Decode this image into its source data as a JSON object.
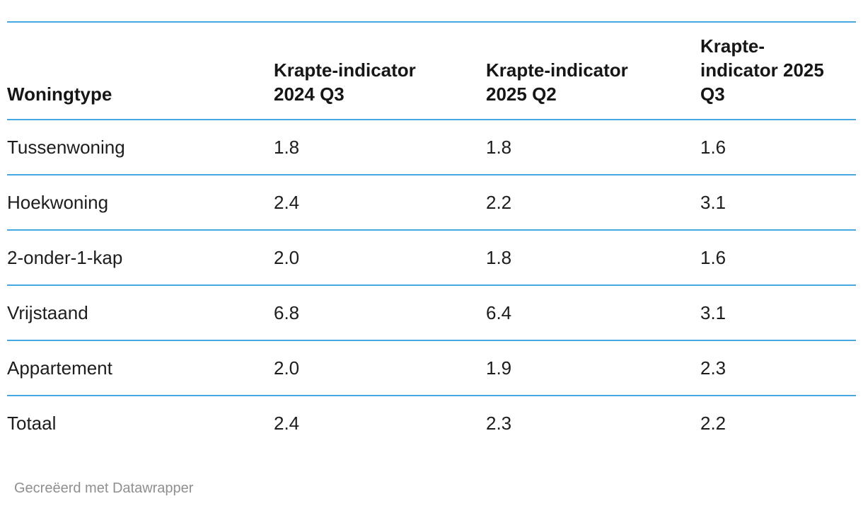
{
  "table": {
    "header": [
      "Woningtype",
      "Krapte-indicator 2024 Q3",
      "Krapte-indicator 2025 Q2",
      "Krapte-indicator 2025 Q3"
    ],
    "rows": [
      {
        "cells": [
          "Tussenwoning",
          "1.8",
          "1.8",
          "1.6"
        ]
      },
      {
        "cells": [
          "Hoekwoning",
          "2.4",
          "2.2",
          "3.1"
        ]
      },
      {
        "cells": [
          "2-onder-1-kap",
          "2.0",
          "1.8",
          "1.6"
        ]
      },
      {
        "cells": [
          "Vrijstaand",
          "6.8",
          "6.4",
          "3.1"
        ]
      },
      {
        "cells": [
          "Appartement",
          "2.0",
          "1.9",
          "2.3"
        ]
      },
      {
        "cells": [
          "Totaal",
          "2.4",
          "2.3",
          "2.2"
        ]
      }
    ]
  },
  "footer": {
    "attribution": "Gecreëerd met Datawrapper"
  },
  "colors": {
    "rule": "#46a7e2",
    "text": "#1d1d1d",
    "header_text": "#161616",
    "footer_text": "#8f8f8f",
    "background": "#ffffff"
  },
  "chart_data": {
    "type": "table",
    "title": "",
    "columns": [
      "Woningtype",
      "Krapte-indicator 2024 Q3",
      "Krapte-indicator 2025 Q2",
      "Krapte-indicator 2025 Q3"
    ],
    "rows": [
      [
        "Tussenwoning",
        1.8,
        1.8,
        1.6
      ],
      [
        "Hoekwoning",
        2.4,
        2.2,
        3.1
      ],
      [
        "2-onder-1-kap",
        2.0,
        1.8,
        1.6
      ],
      [
        "Vrijstaand",
        6.8,
        6.4,
        3.1
      ],
      [
        "Appartement",
        2.0,
        1.9,
        2.3
      ],
      [
        "Totaal",
        2.4,
        2.3,
        2.2
      ]
    ],
    "notes": "Values are krapte-indicator (housing market tightness) per woningtype; rows separated by sky-blue rules; no gridlines between columns; attribution footer bottom-left"
  }
}
